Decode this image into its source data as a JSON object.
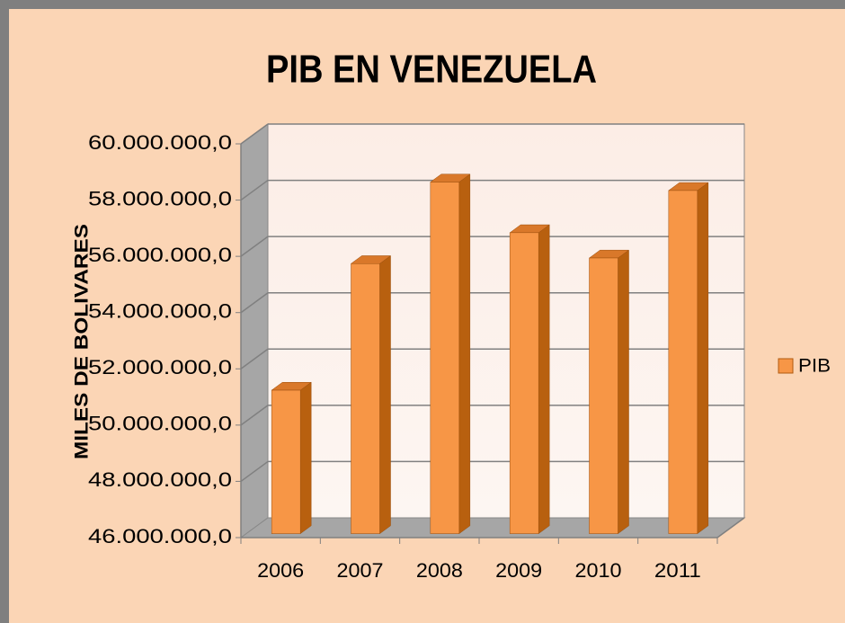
{
  "chart_data": {
    "type": "bar3d",
    "title": "PIB EN VENEZUELA",
    "y_label": "MILES DE BOLIVARES",
    "categories": [
      "2006",
      "2007",
      "2008",
      "2009",
      "2010",
      "2011"
    ],
    "series": [
      {
        "name": "PIB",
        "color": "#F79646",
        "values": [
          51100000,
          55600000,
          58500000,
          56700000,
          55800000,
          58200000
        ]
      }
    ],
    "ylim": [
      46000000,
      60000000
    ],
    "yticks": [
      {
        "value": 46000000,
        "label": "46.000.000,0"
      },
      {
        "value": 48000000,
        "label": "48.000.000,0"
      },
      {
        "value": 50000000,
        "label": "50.000.000,0"
      },
      {
        "value": 52000000,
        "label": "52.000.000,0"
      },
      {
        "value": 54000000,
        "label": "54.000.000,0"
      },
      {
        "value": 56000000,
        "label": "56.000.000,0"
      },
      {
        "value": 58000000,
        "label": "58.000.000,0"
      },
      {
        "value": 60000000,
        "label": "60.000.000,0"
      }
    ],
    "grid": true,
    "legend": "right"
  }
}
